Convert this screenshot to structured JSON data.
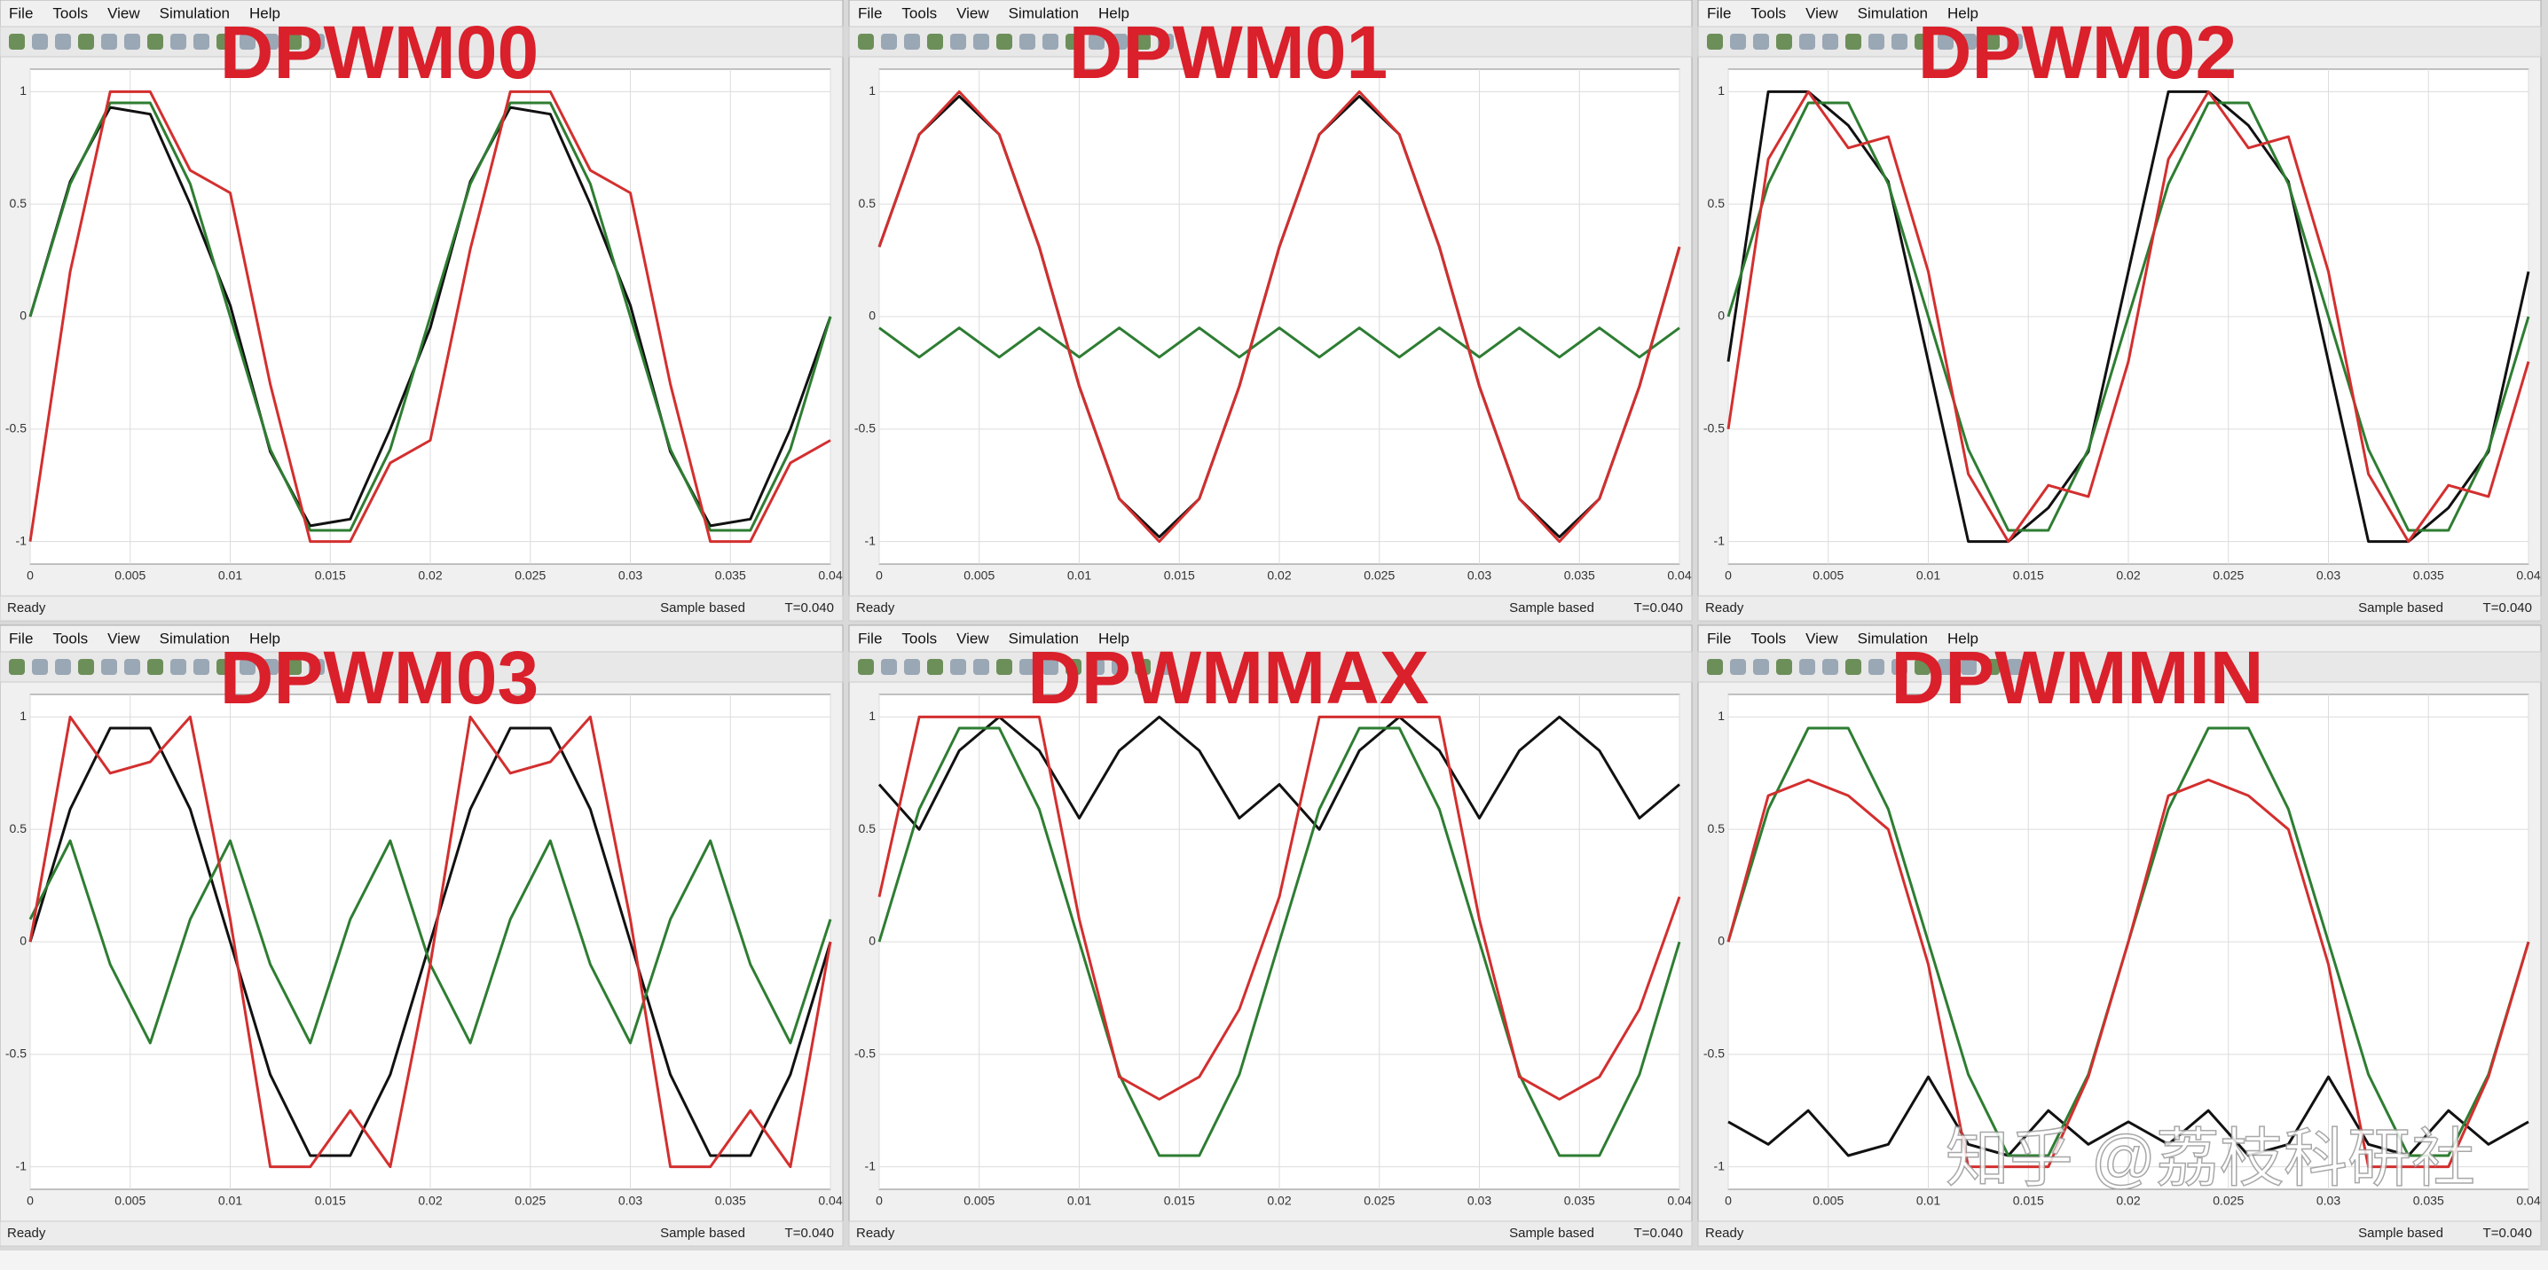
{
  "windows": [
    {
      "menu": [
        "File",
        "Tools",
        "View",
        "Simulation",
        "Help"
      ],
      "status": "Ready",
      "mode": "Sample based",
      "time": "T=0.040"
    },
    {
      "menu": [
        "File",
        "Tools",
        "View",
        "Simulation",
        "Help"
      ],
      "status": "Ready",
      "mode": "Sample based",
      "time": "T=0.040"
    },
    {
      "menu": [
        "File",
        "Tools",
        "View",
        "Simulation",
        "Help"
      ],
      "status": "Ready",
      "mode": "Sample based",
      "time": "T=0.040"
    },
    {
      "menu": [
        "File",
        "Tools",
        "View",
        "Simulation",
        "Help"
      ],
      "status": "Ready",
      "mode": "Sample based",
      "time": "T=0.040"
    },
    {
      "menu": [
        "File",
        "Tools",
        "View",
        "Simulation",
        "Help"
      ],
      "status": "Ready",
      "mode": "Sample based",
      "time": "T=0.040"
    },
    {
      "menu": [
        "File",
        "Tools",
        "View",
        "Simulation",
        "Help"
      ],
      "status": "Ready",
      "mode": "Sample based",
      "time": "T=0.040"
    }
  ],
  "watermark": "知乎 @荔枝科研社",
  "chart_data": [
    {
      "type": "line",
      "title": "DPWM00",
      "grid": true,
      "x": [
        0,
        0.002,
        0.004,
        0.006,
        0.008,
        0.01,
        0.012,
        0.014,
        0.016,
        0.018,
        0.02,
        0.022,
        0.024,
        0.026,
        0.028,
        0.03,
        0.032,
        0.034,
        0.036,
        0.038,
        0.04
      ],
      "xlim": [
        0,
        0.04
      ],
      "xticks": [
        0,
        0.005,
        0.01,
        0.015,
        0.02,
        0.025,
        0.03,
        0.035,
        0.04
      ],
      "ylim": [
        -1.1,
        1.1
      ],
      "yticks": [
        -1,
        -0.5,
        0,
        0.5,
        1
      ],
      "series": [
        {
          "color": "#111111",
          "values": [
            0,
            0.6,
            0.93,
            0.9,
            0.5,
            0.05,
            -0.6,
            -0.93,
            -0.9,
            -0.5,
            -0.05,
            0.6,
            0.93,
            0.9,
            0.5,
            0.05,
            -0.6,
            -0.93,
            -0.9,
            -0.5,
            0
          ]
        },
        {
          "color": "#2e7d32",
          "values": [
            0,
            0.59,
            0.95,
            0.95,
            0.59,
            0,
            -0.59,
            -0.95,
            -0.95,
            -0.59,
            0,
            0.59,
            0.95,
            0.95,
            0.59,
            0,
            -0.59,
            -0.95,
            -0.95,
            -0.59,
            0
          ]
        },
        {
          "color": "#d32f2f",
          "values": [
            -1,
            0.2,
            1,
            1,
            0.65,
            0.55,
            -0.3,
            -1,
            -1,
            -0.65,
            -0.55,
            0.3,
            1,
            1,
            0.65,
            0.55,
            -0.3,
            -1,
            -1,
            -0.65,
            -0.55
          ]
        }
      ]
    },
    {
      "type": "line",
      "title": "DPWM01",
      "grid": true,
      "x": [
        0,
        0.002,
        0.004,
        0.006,
        0.008,
        0.01,
        0.012,
        0.014,
        0.016,
        0.018,
        0.02,
        0.022,
        0.024,
        0.026,
        0.028,
        0.03,
        0.032,
        0.034,
        0.036,
        0.038,
        0.04
      ],
      "xlim": [
        0,
        0.04
      ],
      "xticks": [
        0,
        0.005,
        0.01,
        0.015,
        0.02,
        0.025,
        0.03,
        0.035,
        0.04
      ],
      "ylim": [
        -1.1,
        1.1
      ],
      "yticks": [
        -1,
        -0.5,
        0,
        0.5,
        1
      ],
      "series": [
        {
          "color": "#111111",
          "values": [
            0.31,
            0.81,
            0.98,
            0.81,
            0.31,
            -0.31,
            -0.81,
            -0.98,
            -0.81,
            -0.31,
            0.31,
            0.81,
            0.98,
            0.81,
            0.31,
            -0.31,
            -0.81,
            -0.98,
            -0.81,
            -0.31,
            0.31
          ]
        },
        {
          "color": "#2e7d32",
          "values": [
            -0.05,
            -0.18,
            -0.05,
            -0.18,
            -0.05,
            -0.18,
            -0.05,
            -0.18,
            -0.05,
            -0.18,
            -0.05,
            -0.18,
            -0.05,
            -0.18,
            -0.05,
            -0.18,
            -0.05,
            -0.18,
            -0.05,
            -0.18,
            -0.05
          ]
        },
        {
          "color": "#d32f2f",
          "values": [
            0.31,
            0.81,
            1,
            0.81,
            0.31,
            -0.31,
            -0.81,
            -1,
            -0.81,
            -0.31,
            0.31,
            0.81,
            1,
            0.81,
            0.31,
            -0.31,
            -0.81,
            -1,
            -0.81,
            -0.31,
            0.31
          ]
        }
      ]
    },
    {
      "type": "line",
      "title": "DPWM02",
      "grid": true,
      "x": [
        0,
        0.002,
        0.004,
        0.006,
        0.008,
        0.01,
        0.012,
        0.014,
        0.016,
        0.018,
        0.02,
        0.022,
        0.024,
        0.026,
        0.028,
        0.03,
        0.032,
        0.034,
        0.036,
        0.038,
        0.04
      ],
      "xlim": [
        0,
        0.04
      ],
      "xticks": [
        0,
        0.005,
        0.01,
        0.015,
        0.02,
        0.025,
        0.03,
        0.035,
        0.04
      ],
      "ylim": [
        -1.1,
        1.1
      ],
      "yticks": [
        -1,
        -0.5,
        0,
        0.5,
        1
      ],
      "series": [
        {
          "color": "#111111",
          "values": [
            -0.2,
            1,
            1,
            0.85,
            0.6,
            -0.2,
            -1,
            -1,
            -0.85,
            -0.6,
            0.2,
            1,
            1,
            0.85,
            0.6,
            -0.2,
            -1,
            -1,
            -0.85,
            -0.6,
            0.2
          ]
        },
        {
          "color": "#2e7d32",
          "values": [
            0,
            0.59,
            0.95,
            0.95,
            0.59,
            0,
            -0.59,
            -0.95,
            -0.95,
            -0.59,
            0,
            0.59,
            0.95,
            0.95,
            0.59,
            0,
            -0.59,
            -0.95,
            -0.95,
            -0.59,
            0
          ]
        },
        {
          "color": "#d32f2f",
          "values": [
            -0.5,
            0.7,
            1,
            0.75,
            0.8,
            0.2,
            -0.7,
            -1,
            -0.75,
            -0.8,
            -0.2,
            0.7,
            1,
            0.75,
            0.8,
            0.2,
            -0.7,
            -1,
            -0.75,
            -0.8,
            -0.2
          ]
        }
      ]
    },
    {
      "type": "line",
      "title": "DPWM03",
      "grid": true,
      "x": [
        0,
        0.002,
        0.004,
        0.006,
        0.008,
        0.01,
        0.012,
        0.014,
        0.016,
        0.018,
        0.02,
        0.022,
        0.024,
        0.026,
        0.028,
        0.03,
        0.032,
        0.034,
        0.036,
        0.038,
        0.04
      ],
      "xlim": [
        0,
        0.04
      ],
      "xticks": [
        0,
        0.005,
        0.01,
        0.015,
        0.02,
        0.025,
        0.03,
        0.035,
        0.04
      ],
      "ylim": [
        -1.1,
        1.1
      ],
      "yticks": [
        -1,
        -0.5,
        0,
        0.5,
        1
      ],
      "series": [
        {
          "color": "#111111",
          "values": [
            0,
            0.59,
            0.95,
            0.95,
            0.59,
            0,
            -0.59,
            -0.95,
            -0.95,
            -0.59,
            0,
            0.59,
            0.95,
            0.95,
            0.59,
            0,
            -0.59,
            -0.95,
            -0.95,
            -0.59,
            0
          ]
        },
        {
          "color": "#2e7d32",
          "values": [
            0.1,
            0.45,
            -0.1,
            -0.45,
            0.1,
            0.45,
            -0.1,
            -0.45,
            0.1,
            0.45,
            -0.1,
            -0.45,
            0.1,
            0.45,
            -0.1,
            -0.45,
            0.1,
            0.45,
            -0.1,
            -0.45,
            0.1
          ]
        },
        {
          "color": "#d32f2f",
          "values": [
            0,
            1,
            0.75,
            0.8,
            1,
            0.1,
            -1,
            -1,
            -0.75,
            -1,
            -0.1,
            1,
            0.75,
            0.8,
            1,
            0.1,
            -1,
            -1,
            -0.75,
            -1,
            0
          ]
        }
      ]
    },
    {
      "type": "line",
      "title": "DPWMMAX",
      "grid": true,
      "x": [
        0,
        0.002,
        0.004,
        0.006,
        0.008,
        0.01,
        0.012,
        0.014,
        0.016,
        0.018,
        0.02,
        0.022,
        0.024,
        0.026,
        0.028,
        0.03,
        0.032,
        0.034,
        0.036,
        0.038,
        0.04
      ],
      "xlim": [
        0,
        0.04
      ],
      "xticks": [
        0,
        0.005,
        0.01,
        0.015,
        0.02,
        0.025,
        0.03,
        0.035,
        0.04
      ],
      "ylim": [
        -1.1,
        1.1
      ],
      "yticks": [
        -1,
        -0.5,
        0,
        0.5,
        1
      ],
      "series": [
        {
          "color": "#111111",
          "values": [
            0.7,
            0.5,
            0.85,
            1,
            0.85,
            0.55,
            0.85,
            1,
            0.85,
            0.55,
            0.7,
            0.5,
            0.85,
            1,
            0.85,
            0.55,
            0.85,
            1,
            0.85,
            0.55,
            0.7
          ]
        },
        {
          "color": "#2e7d32",
          "values": [
            0,
            0.59,
            0.95,
            0.95,
            0.59,
            0,
            -0.59,
            -0.95,
            -0.95,
            -0.59,
            0,
            0.59,
            0.95,
            0.95,
            0.59,
            0,
            -0.59,
            -0.95,
            -0.95,
            -0.59,
            0
          ]
        },
        {
          "color": "#d32f2f",
          "values": [
            0.2,
            1,
            1,
            1,
            1,
            0.1,
            -0.6,
            -0.7,
            -0.6,
            -0.3,
            0.2,
            1,
            1,
            1,
            1,
            0.1,
            -0.6,
            -0.7,
            -0.6,
            -0.3,
            0.2
          ]
        }
      ]
    },
    {
      "type": "line",
      "title": "DPWMMIN",
      "grid": true,
      "x": [
        0,
        0.002,
        0.004,
        0.006,
        0.008,
        0.01,
        0.012,
        0.014,
        0.016,
        0.018,
        0.02,
        0.022,
        0.024,
        0.026,
        0.028,
        0.03,
        0.032,
        0.034,
        0.036,
        0.038,
        0.04
      ],
      "xlim": [
        0,
        0.04
      ],
      "xticks": [
        0,
        0.005,
        0.01,
        0.015,
        0.02,
        0.025,
        0.03,
        0.035,
        0.04
      ],
      "ylim": [
        -1.1,
        1.1
      ],
      "yticks": [
        -1,
        -0.5,
        0,
        0.5,
        1
      ],
      "series": [
        {
          "color": "#111111",
          "values": [
            -0.8,
            -0.9,
            -0.75,
            -0.95,
            -0.9,
            -0.6,
            -0.9,
            -0.95,
            -0.75,
            -0.9,
            -0.8,
            -0.9,
            -0.75,
            -0.95,
            -0.9,
            -0.6,
            -0.9,
            -0.95,
            -0.75,
            -0.9,
            -0.8
          ]
        },
        {
          "color": "#2e7d32",
          "values": [
            0,
            0.59,
            0.95,
            0.95,
            0.59,
            0,
            -0.59,
            -0.95,
            -0.95,
            -0.59,
            0,
            0.59,
            0.95,
            0.95,
            0.59,
            0,
            -0.59,
            -0.95,
            -0.95,
            -0.59,
            0
          ]
        },
        {
          "color": "#d32f2f",
          "values": [
            0,
            0.65,
            0.72,
            0.65,
            0.5,
            -0.1,
            -1,
            -1,
            -1,
            -0.6,
            0,
            0.65,
            0.72,
            0.65,
            0.5,
            -0.1,
            -1,
            -1,
            -1,
            -0.6,
            0
          ]
        }
      ]
    }
  ]
}
